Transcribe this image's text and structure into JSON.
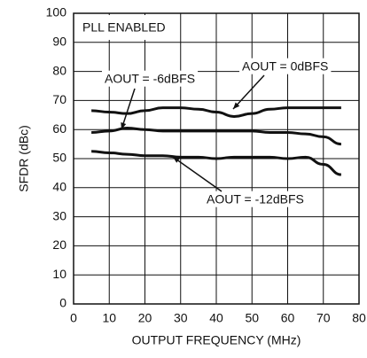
{
  "chart_data": {
    "type": "line",
    "x_label": "OUTPUT FREQUENCY (MHz)",
    "y_label": "SFDR (dBc)",
    "annotation": "PLL ENABLED",
    "x": [
      5,
      10,
      15,
      20,
      25,
      30,
      35,
      40,
      45,
      50,
      55,
      60,
      65,
      70,
      75
    ],
    "series": [
      {
        "name": "AOUT = 0dBFS",
        "color": "#111111",
        "values": [
          66.5,
          66,
          65.5,
          66.5,
          67.5,
          67.5,
          67,
          66,
          64.5,
          65.5,
          67,
          67.5,
          67.5,
          67.5,
          67.5
        ]
      },
      {
        "name": "AOUT = -6dBFS",
        "color": "#111111",
        "values": [
          59,
          59.5,
          60.5,
          60,
          59.5,
          59.5,
          59.5,
          59.5,
          59.5,
          59.5,
          59,
          59,
          58.5,
          57.5,
          55
        ]
      },
      {
        "name": "AOUT = -12dBFS",
        "color": "#111111",
        "values": [
          52.5,
          52,
          51.5,
          51,
          51,
          50.5,
          50.5,
          50,
          50.5,
          50.5,
          50.5,
          50,
          50.5,
          48,
          44.5
        ]
      }
    ],
    "xlim": [
      0,
      80
    ],
    "xticks": [
      0,
      10,
      20,
      30,
      40,
      50,
      60,
      70,
      80
    ],
    "ylim": [
      0,
      100
    ],
    "yticks": [
      0,
      10,
      20,
      30,
      40,
      50,
      60,
      70,
      80,
      90,
      100
    ],
    "grid": true
  }
}
